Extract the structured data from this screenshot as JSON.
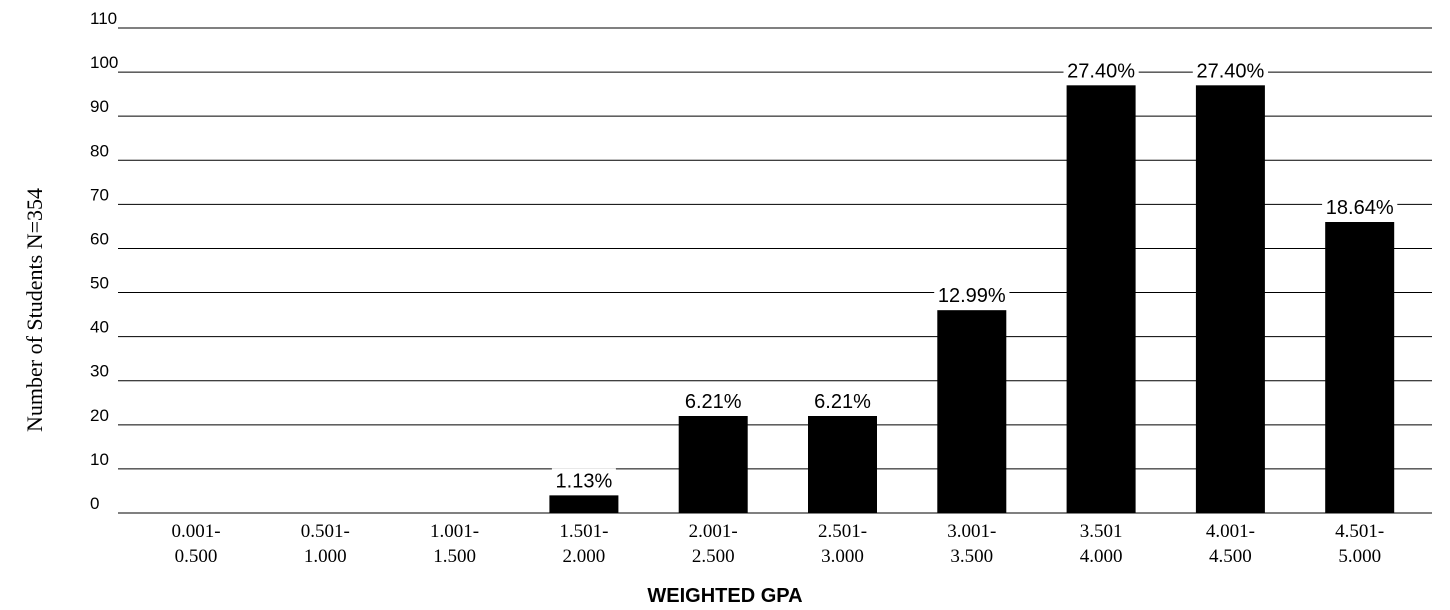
{
  "chart_data": {
    "type": "bar",
    "categories": [
      [
        "0.001-",
        "0.500"
      ],
      [
        "0.501-",
        "1.000"
      ],
      [
        "1.001-",
        "1.500"
      ],
      [
        "1.501-",
        "2.000"
      ],
      [
        "2.001-",
        "2.500"
      ],
      [
        "2.501-",
        "3.000"
      ],
      [
        "3.001-",
        "3.500"
      ],
      [
        "3.501",
        "4.000"
      ],
      [
        "4.001-",
        "4.500"
      ],
      [
        "4.501-",
        "5.000"
      ]
    ],
    "values": [
      0,
      0,
      0,
      4,
      22,
      22,
      46,
      97,
      97,
      66
    ],
    "data_labels": [
      "",
      "",
      "",
      "1.13%",
      "6.21%",
      "6.21%",
      "12.99%",
      "27.40%",
      "27.40%",
      "18.64%"
    ],
    "xlabel": "WEIGHTED GPA",
    "ylabel": "Number of Students N=354",
    "ylim": [
      0,
      110
    ],
    "yticks": [
      0,
      10,
      20,
      30,
      40,
      50,
      60,
      70,
      80,
      90,
      100,
      110
    ],
    "grid": true,
    "bar_color": "#000000"
  }
}
